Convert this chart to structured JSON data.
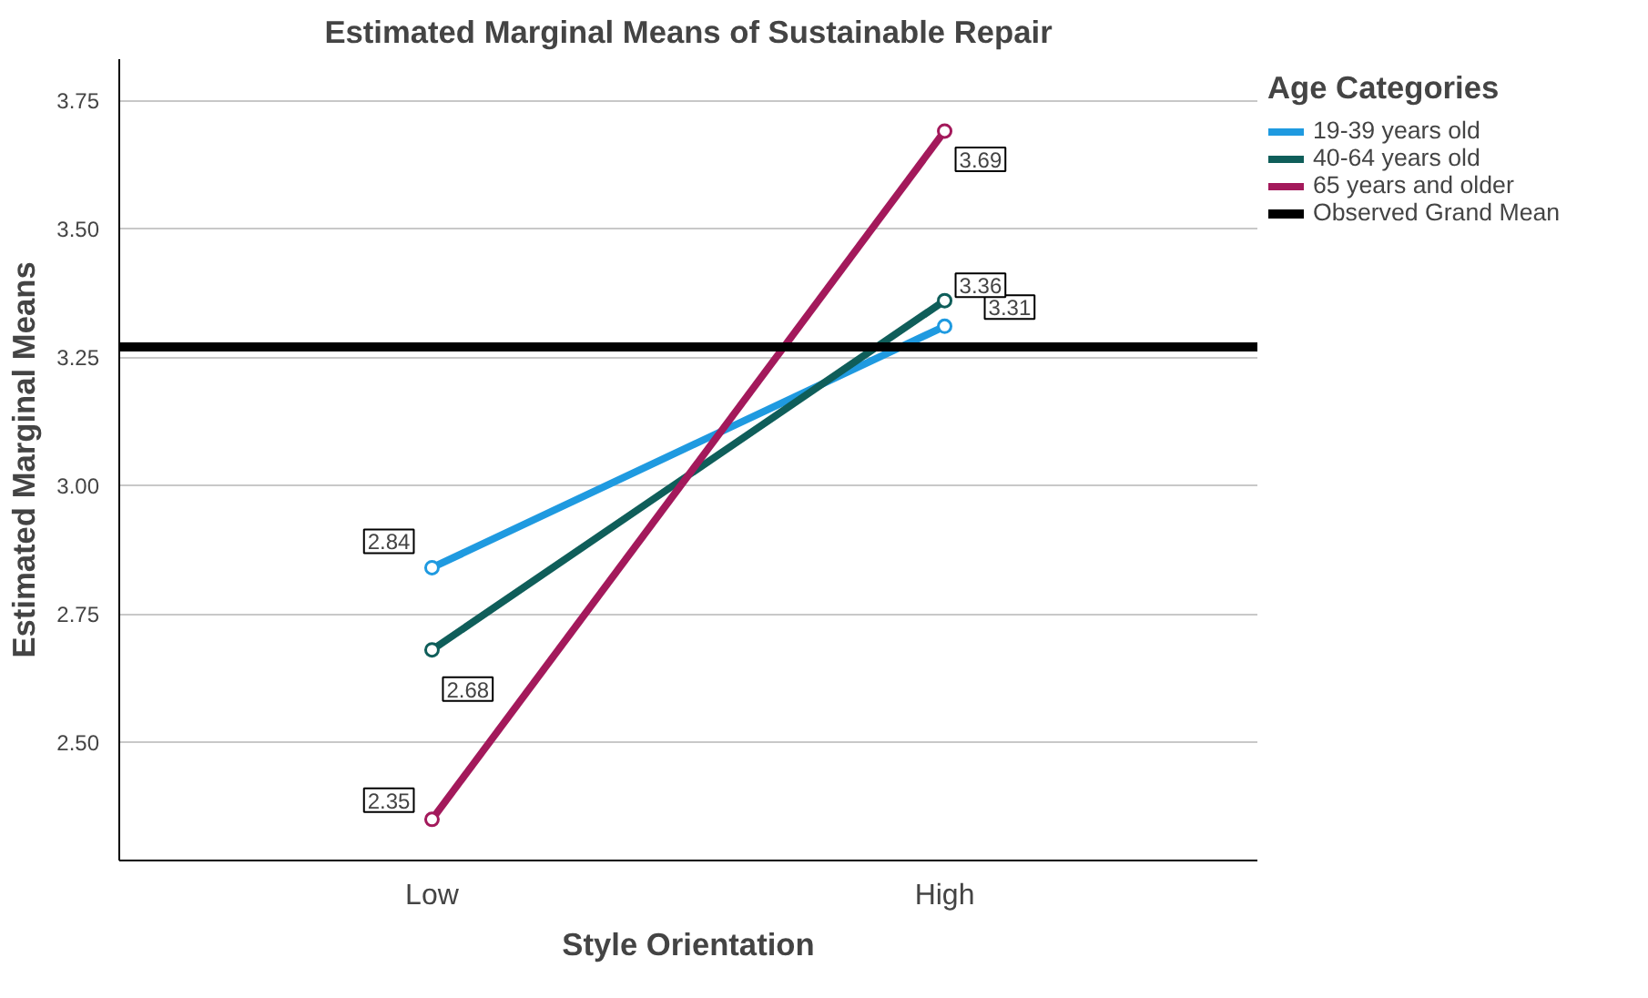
{
  "chart_data": {
    "type": "line",
    "title": "Estimated Marginal Means of Sustainable Repair",
    "xlabel": "Style Orientation",
    "ylabel": "Estimated Marginal Means",
    "legend_title": "Age Categories",
    "categories": [
      "Low",
      "High"
    ],
    "series": [
      {
        "name": "19-39 years old",
        "color": "#1f9ae0",
        "values": [
          2.84,
          3.31
        ]
      },
      {
        "name": "40-64 years old",
        "color": "#0f5e5a",
        "values": [
          2.68,
          3.36
        ]
      },
      {
        "name": "65 years and older",
        "color": "#a3195b",
        "values": [
          2.35,
          3.69
        ]
      }
    ],
    "ref_lines": [
      {
        "axis": "y",
        "value": 3.27,
        "label": "Observed Grand Mean",
        "color": "#000000"
      }
    ],
    "ylim": [
      2.27,
      3.83
    ],
    "yticks": [
      {
        "value": 2.5,
        "label": "2.50"
      },
      {
        "value": 2.75,
        "label": "2.75"
      },
      {
        "value": 3.0,
        "label": "3.00"
      },
      {
        "value": 3.25,
        "label": "3.25"
      },
      {
        "value": 3.5,
        "label": "3.50"
      },
      {
        "value": 3.75,
        "label": "3.75"
      }
    ],
    "grid": "y",
    "legend": "top right",
    "marker": "circle",
    "line_style": "solid",
    "data_labels": true
  }
}
